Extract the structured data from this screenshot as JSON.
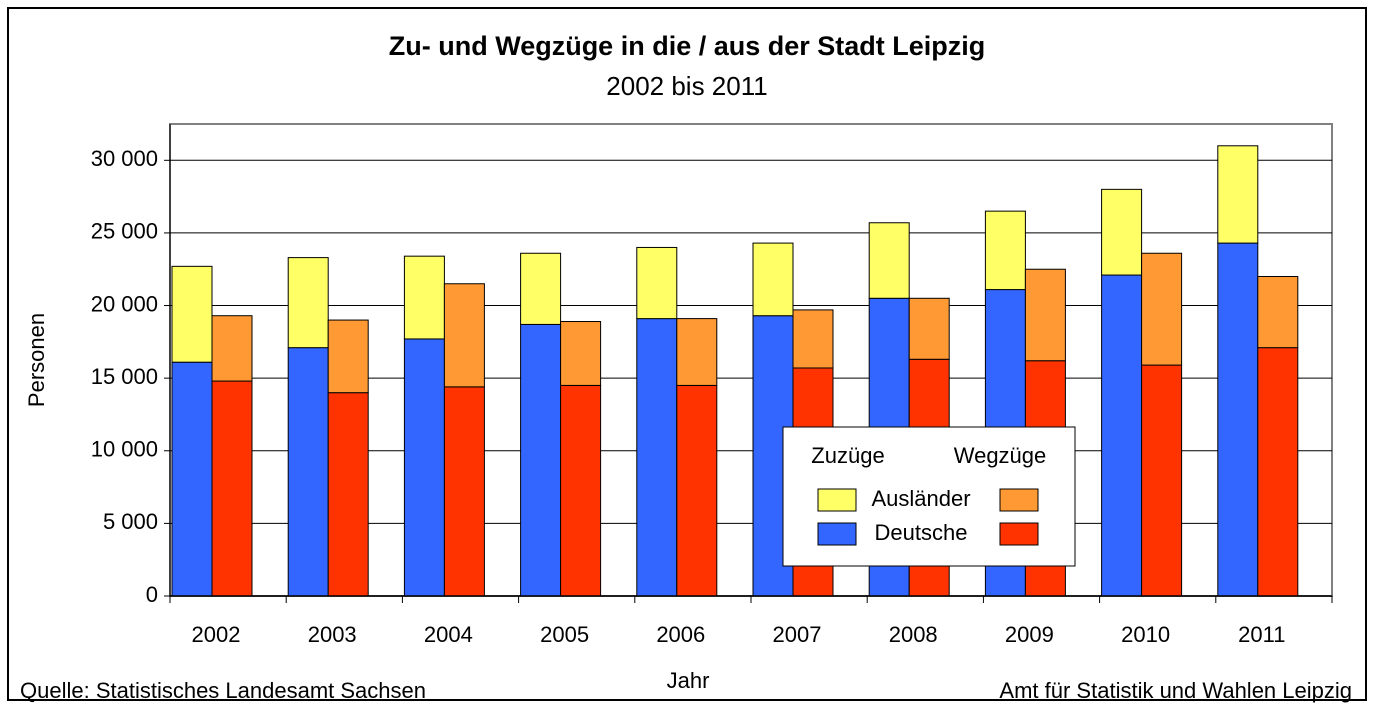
{
  "chart_data": {
    "type": "grouped-stacked-bar",
    "title": "Zu- und Wegzüge in die / aus der Stadt Leipzig",
    "subtitle": "2002 bis 2011",
    "ylabel": "Personen",
    "xlabel": "Jahr",
    "source_left": "Quelle: Statistisches Landesamt Sachsen",
    "source_right": "Amt für Statistik und Wahlen Leipzig",
    "categories": [
      "2002",
      "2003",
      "2004",
      "2005",
      "2006",
      "2007",
      "2008",
      "2009",
      "2010",
      "2011"
    ],
    "stacks": [
      "Zuzüge",
      "Wegzüge"
    ],
    "series": [
      {
        "name": "Deutsche",
        "stack": 0,
        "color": "#3366ff",
        "values": [
          16100,
          17100,
          17700,
          18700,
          19100,
          19300,
          20500,
          21100,
          22100,
          24300
        ]
      },
      {
        "name": "Ausländer",
        "stack": 0,
        "color": "#ffff66",
        "values": [
          6600,
          6200,
          5700,
          4900,
          4900,
          5000,
          5200,
          5400,
          5900,
          6700
        ]
      },
      {
        "name": "Deutsche",
        "stack": 1,
        "color": "#ff3300",
        "values": [
          14800,
          14000,
          14400,
          14500,
          14500,
          15700,
          16300,
          16200,
          15900,
          17100
        ]
      },
      {
        "name": "Ausländer",
        "stack": 1,
        "color": "#ff9933",
        "values": [
          4500,
          5000,
          7100,
          4400,
          4600,
          4000,
          4200,
          6300,
          7700,
          4900
        ]
      }
    ],
    "ylim": [
      0,
      32500
    ],
    "yticks": [
      0,
      {
        "value": 5000,
        "label": "5 000"
      },
      {
        "value": 10000,
        "label": "10 000"
      },
      {
        "value": 15000,
        "label": "15 000"
      },
      {
        "value": 20000,
        "label": "20 000"
      },
      {
        "value": 25000,
        "label": "25 000"
      },
      {
        "value": 30000,
        "label": "30 000"
      }
    ],
    "grid": true
  }
}
